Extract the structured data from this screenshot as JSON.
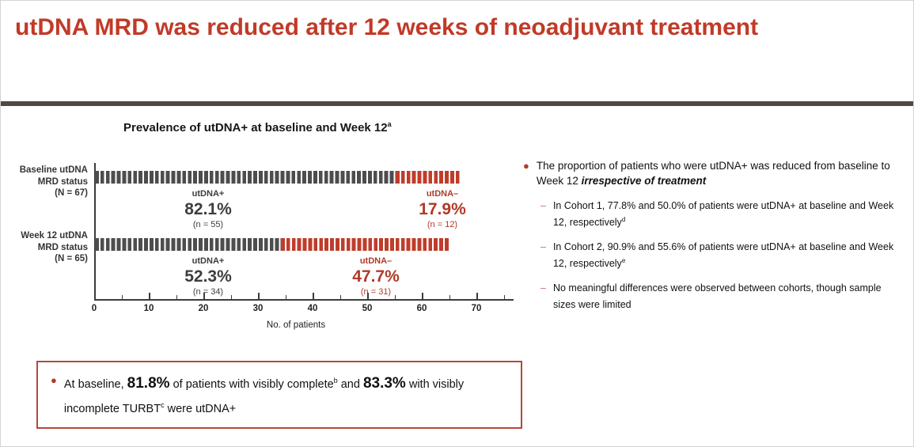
{
  "slide": {
    "title": "utDNA MRD was reduced after 12 weeks of neoadjuvant treatment"
  },
  "chart": {
    "title": "Prevalence of utDNA+ at baseline and Week 12",
    "title_sup": "a",
    "xlabel": "No. of patients"
  },
  "chart_data": {
    "type": "bar",
    "orientation": "horizontal",
    "title": "Prevalence of utDNA+ at baseline and Week 12",
    "xlabel": "No. of patients",
    "note": "each dash glyph in a bar represents one patient",
    "x_axis": {
      "min": 0,
      "max": 70,
      "major_step": 10,
      "minor_step": 5,
      "minor_extent": 75
    },
    "colors": {
      "utdna_pos": "#4d4d4d",
      "utdna_neg": "#bf3d2b"
    },
    "rows": [
      {
        "label_lines": [
          "Baseline utDNA",
          "MRD status",
          "(N = 67)"
        ],
        "total": 67,
        "segments": [
          {
            "name": "utDNA+",
            "pct": 82.1,
            "pct_label": "82.1%",
            "n": 55,
            "n_label": "(n = 55)",
            "colorKey": "utdna_pos"
          },
          {
            "name": "utDNA–",
            "pct": 17.9,
            "pct_label": "17.9%",
            "n": 12,
            "n_label": "(n = 12)",
            "colorKey": "utdna_neg"
          }
        ]
      },
      {
        "label_lines": [
          "Week 12 utDNA",
          "MRD status",
          "(N = 65)"
        ],
        "total": 65,
        "segments": [
          {
            "name": "utDNA+",
            "pct": 52.3,
            "pct_label": "52.3%",
            "n": 34,
            "n_label": "(n = 34)",
            "colorKey": "utdna_pos"
          },
          {
            "name": "utDNA–",
            "pct": 47.7,
            "pct_label": "47.7%",
            "n": 31,
            "n_label": "(n = 31)",
            "colorKey": "utdna_neg"
          }
        ]
      }
    ]
  },
  "bullets": {
    "main": {
      "text": "The proportion of patients who were utDNA+ was reduced from baseline to Week 12 ",
      "emphasis": "irrespective of treatment"
    },
    "sub": [
      {
        "text": "In Cohort 1, 77.8% and 50.0% of patients were utDNA+ at baseline and Week 12, respectively",
        "sup": "d"
      },
      {
        "text": "In Cohort 2, 90.9% and 55.6% of patients were utDNA+ at baseline and Week 12, respectively",
        "sup": "e"
      },
      {
        "text": "No meaningful differences were observed between cohorts, though sample sizes were limited",
        "sup": ""
      }
    ]
  },
  "callout": {
    "t1": "At baseline, ",
    "big1": "81.8%",
    "t2": " of patients with visibly complete",
    "sup1": "b",
    "t3": " and ",
    "big2": "83.3%",
    "t4": " with visibly incomplete TURBT",
    "sup2": "c",
    "t5": " were utDNA+"
  }
}
